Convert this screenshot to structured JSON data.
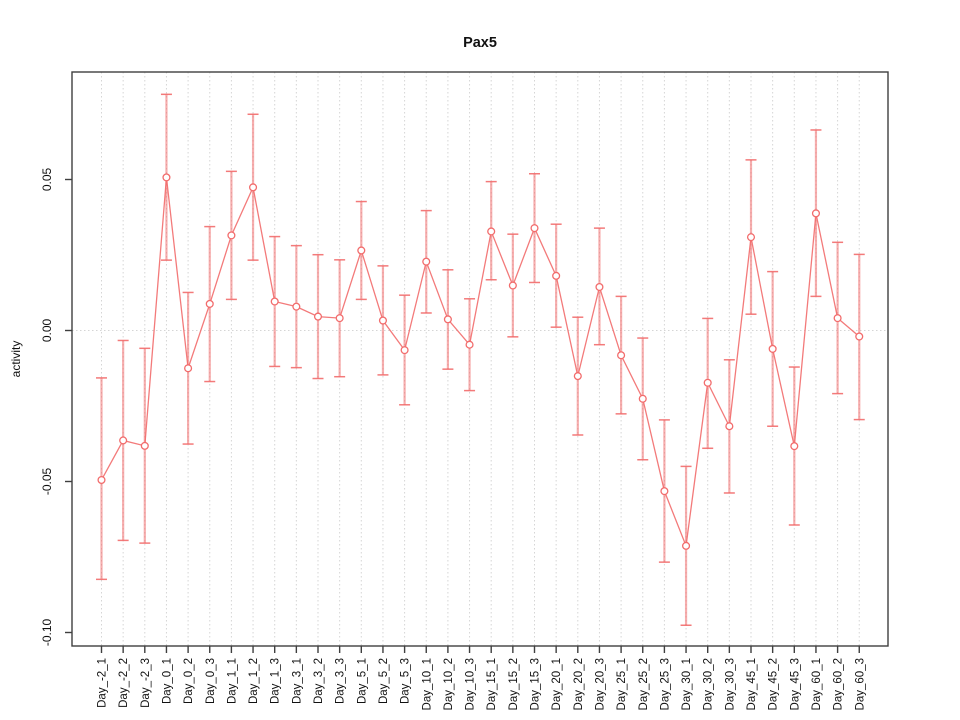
{
  "figure": {
    "background": "#ffffff",
    "accent_red": "#f26c6c",
    "grid_color": "#d5d5d5",
    "axis_color": "#3f3f3f",
    "text_color": "#111111"
  },
  "chart_data": {
    "type": "line",
    "title": "Pax5",
    "xlabel": "",
    "ylabel": "activity",
    "legend_position": "none",
    "grid": "vertical dotted gridline at every category; dotted horizontal line at y=0",
    "marker": "open-circle",
    "error_bars": true,
    "ylim": [
      -0.105,
      0.0855
    ],
    "yticks": [
      0.05,
      0.0,
      -0.05,
      -0.1
    ],
    "ytick_labels": [
      "0.05",
      "0.00",
      "-0.05",
      "-0.10"
    ],
    "categories": [
      "Day_-2_1",
      "Day_-2_2",
      "Day_-2_3",
      "Day_0_1",
      "Day_0_2",
      "Day_0_3",
      "Day_1_1",
      "Day_1_2",
      "Day_1_3",
      "Day_3_1",
      "Day_3_2",
      "Day_3_3",
      "Day_5_1",
      "Day_5_2",
      "Day_5_3",
      "Day_10_1",
      "Day_10_2",
      "Day_10_3",
      "Day_15_1",
      "Day_15_2",
      "Day_15_3",
      "Day_20_1",
      "Day_20_2",
      "Day_20_3",
      "Day_25_1",
      "Day_25_2",
      "Day_25_3",
      "Day_30_1",
      "Day_30_2",
      "Day_30_3",
      "Day_45_1",
      "Day_45_2",
      "Day_45_3",
      "Day_60_1",
      "Day_60_2",
      "Day_60_3"
    ],
    "series": [
      {
        "name": "activity",
        "means": [
          -0.0495,
          -0.0364,
          -0.0382,
          0.0507,
          -0.0125,
          0.0088,
          0.0315,
          0.0474,
          0.0096,
          0.0079,
          0.0046,
          0.0041,
          0.0265,
          0.0033,
          -0.0065,
          0.0228,
          0.0037,
          -0.0047,
          0.0328,
          0.0149,
          0.0339,
          0.0181,
          -0.0151,
          0.0144,
          -0.0082,
          -0.0226,
          -0.0532,
          -0.0713,
          -0.0173,
          -0.0317,
          0.0309,
          -0.0061,
          -0.0383,
          0.0388,
          0.0041,
          -0.002
        ],
        "upper": [
          -0.0157,
          -0.0033,
          -0.0059,
          0.0782,
          0.0126,
          0.0344,
          0.0527,
          0.0716,
          0.0311,
          0.0281,
          0.0251,
          0.0234,
          0.0427,
          0.0214,
          0.0117,
          0.0397,
          0.0201,
          0.0105,
          0.0493,
          0.0319,
          0.0519,
          0.0352,
          0.0044,
          0.0339,
          0.0113,
          -0.0025,
          -0.0296,
          -0.045,
          0.004,
          -0.0097,
          0.0565,
          0.0195,
          -0.0121,
          0.0664,
          0.0292,
          0.0252
        ],
        "lower": [
          -0.0824,
          -0.0695,
          -0.0704,
          0.0233,
          -0.0376,
          -0.0169,
          0.0103,
          0.0233,
          -0.0119,
          -0.0123,
          -0.0159,
          -0.0153,
          0.0103,
          -0.0147,
          -0.0246,
          0.0058,
          -0.0128,
          -0.0199,
          0.0168,
          -0.0021,
          0.0159,
          0.0011,
          -0.0346,
          -0.0047,
          -0.0276,
          -0.0428,
          -0.0767,
          -0.0976,
          -0.039,
          -0.0538,
          0.0054,
          -0.0317,
          -0.0644,
          0.0113,
          -0.0209,
          -0.0295
        ]
      }
    ]
  }
}
